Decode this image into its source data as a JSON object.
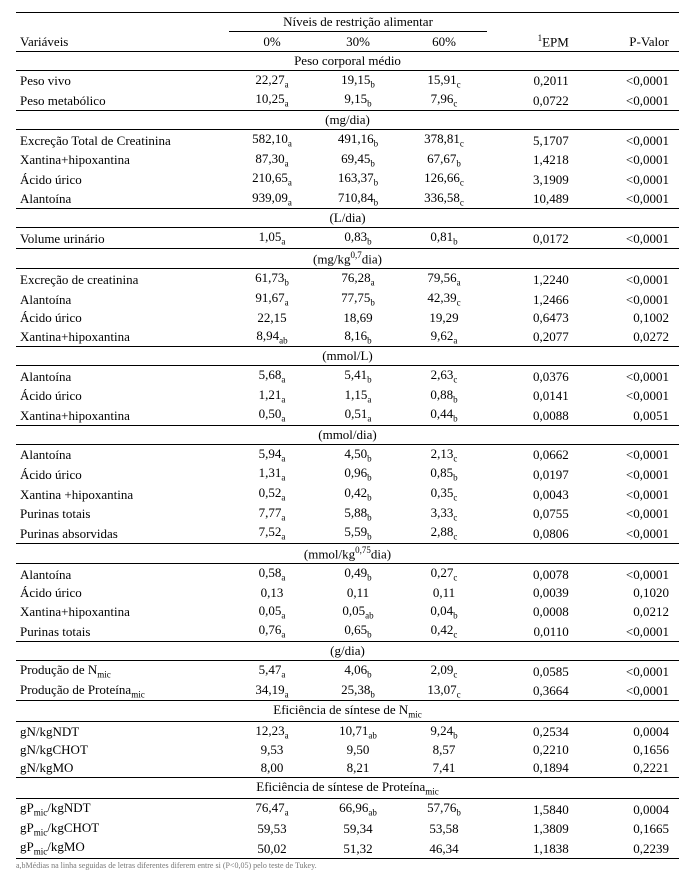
{
  "header": {
    "spanner": "Níveis de restrição alimentar",
    "variaveis": "Variáveis",
    "l0": "0%",
    "l30": "30%",
    "l60": "60%",
    "epm_sup": "1",
    "epm": "EPM",
    "pvalor": "P-Valor"
  },
  "sections": [
    {
      "title": "Peso corporal médio",
      "rows": [
        {
          "label": "Peso vivo",
          "v0": "22,27",
          "s0": "a",
          "v30": "19,15",
          "s30": "b",
          "v60": "15,91",
          "s60": "c",
          "epm": "0,2011",
          "p": "<0,0001"
        },
        {
          "label": "Peso metabólico",
          "v0": "10,25",
          "s0": "a",
          "v30": "9,15",
          "s30": "b",
          "v60": "7,96",
          "s60": "c",
          "epm": "0,0722",
          "p": "<0,0001"
        }
      ]
    },
    {
      "title": "(mg/dia)",
      "rows": [
        {
          "label": "Excreção Total de Creatinina",
          "v0": "582,10",
          "s0": "a",
          "v30": "491,16",
          "s30": "b",
          "v60": "378,81",
          "s60": "c",
          "epm": "5,1707",
          "p": "<0,0001"
        },
        {
          "label": "Xantina+hipoxantina",
          "v0": "87,30",
          "s0": "a",
          "v30": "69,45",
          "s30": "b",
          "v60": "67,67",
          "s60": "b",
          "epm": "1,4218",
          "p": "<0,0001"
        },
        {
          "label": "Ácido úrico",
          "v0": "210,65",
          "s0": "a",
          "v30": "163,37",
          "s30": "b",
          "v60": "126,66",
          "s60": "c",
          "epm": "3,1909",
          "p": "<0,0001"
        },
        {
          "label": "Alantoína",
          "v0": "939,09",
          "s0": "a",
          "v30": "710,84",
          "s30": "b",
          "v60": "336,58",
          "s60": "c",
          "epm": "10,489",
          "p": "<0,0001"
        }
      ]
    },
    {
      "title": "(L/dia)",
      "rows": [
        {
          "label": "Volume urinário",
          "v0": "1,05",
          "s0": "a",
          "v30": "0,83",
          "s30": "b",
          "v60": "0,81",
          "s60": "b",
          "epm": "0,0172",
          "p": "<0,0001"
        }
      ]
    },
    {
      "title": "(mg/kg<span class='exp'>0,7</span>dia)",
      "rows": [
        {
          "label": "Excreção de creatinina",
          "v0": "61,73",
          "s0": "b",
          "v30": "76,28",
          "s30": "a",
          "v60": "79,56",
          "s60": "a",
          "epm": "1,2240",
          "p": "<0,0001"
        },
        {
          "label": "Alantoína",
          "v0": "91,67",
          "s0": "a",
          "v30": "77,75",
          "s30": "b",
          "v60": "42,39",
          "s60": "c",
          "epm": "1,2466",
          "p": "<0,0001"
        },
        {
          "label": "Ácido úrico",
          "v0": "22,15",
          "s0": "",
          "v30": "18,69",
          "s30": "",
          "v60": "19,29",
          "s60": "",
          "epm": "0,6473",
          "p": "0,1002"
        },
        {
          "label": "Xantina+hipoxantina",
          "v0": "8,94",
          "s0": "ab",
          "v30": "8,16",
          "s30": "b",
          "v60": "9,62",
          "s60": "a",
          "epm": "0,2077",
          "p": "0,0272"
        }
      ]
    },
    {
      "title": "(mmol/L)",
      "rows": [
        {
          "label": "Alantoína",
          "v0": "5,68",
          "s0": "a",
          "v30": "5,41",
          "s30": "b",
          "v60": "2,63",
          "s60": "c",
          "epm": "0,0376",
          "p": "<0,0001"
        },
        {
          "label": "Ácido úrico",
          "v0": "1,21",
          "s0": "a",
          "v30": "1,15",
          "s30": "a",
          "v60": "0,88",
          "s60": "b",
          "epm": "0,0141",
          "p": "<0,0001"
        },
        {
          "label": "Xantina+hipoxantina",
          "v0": "0,50",
          "s0": "a",
          "v30": "0,51",
          "s30": "a",
          "v60": "0,44",
          "s60": "b",
          "epm": "0,0088",
          "p": "0,0051"
        }
      ]
    },
    {
      "title": "(mmol/dia)",
      "rows": [
        {
          "label": "Alantoína",
          "v0": "5,94",
          "s0": "a",
          "v30": "4,50",
          "s30": "b",
          "v60": "2,13",
          "s60": "c",
          "epm": "0,0662",
          "p": "<0,0001"
        },
        {
          "label": "Ácido úrico",
          "v0": "1,31",
          "s0": "a",
          "v30": "0,96",
          "s30": "b",
          "v60": "0,85",
          "s60": "b",
          "epm": "0,0197",
          "p": "<0,0001"
        },
        {
          "label": "Xantina +hipoxantina",
          "v0": "0,52",
          "s0": "a",
          "v30": "0,42",
          "s30": "b",
          "v60": "0,35",
          "s60": "c",
          "epm": "0,0043",
          "p": "<0,0001"
        },
        {
          "label": "Purinas totais",
          "v0": "7,77",
          "s0": "a",
          "v30": "5,88",
          "s30": "b",
          "v60": "3,33",
          "s60": "c",
          "epm": "0,0755",
          "p": "<0,0001"
        },
        {
          "label": "Purinas absorvidas",
          "v0": "7,52",
          "s0": "a",
          "v30": "5,59",
          "s30": "b",
          "v60": "2,88",
          "s60": "c",
          "epm": "0,0806",
          "p": "<0,0001"
        }
      ]
    },
    {
      "title": "(mmol/kg<span class='exp'>0,75</span>dia)",
      "rows": [
        {
          "label": "Alantoína",
          "v0": "0,58",
          "s0": "a",
          "v30": "0,49",
          "s30": "b",
          "v60": "0,27",
          "s60": "c",
          "epm": "0,0078",
          "p": "<0,0001"
        },
        {
          "label": "Ácido úrico",
          "v0": "0,13",
          "s0": "",
          "v30": "0,11",
          "s30": "",
          "v60": "0,11",
          "s60": "",
          "epm": "0,0039",
          "p": "0,1020"
        },
        {
          "label": "Xantina+hipoxantina",
          "v0": "0,05",
          "s0": "a",
          "v30": "0,05",
          "s30": "ab",
          "v60": "0,04",
          "s60": "b",
          "epm": "0,0008",
          "p": "0,0212"
        },
        {
          "label": "Purinas totais",
          "v0": "0,76",
          "s0": "a",
          "v30": "0,65",
          "s30": "b",
          "v60": "0,42",
          "s60": "c",
          "epm": "0,0110",
          "p": "<0,0001"
        }
      ]
    },
    {
      "title": "(g/dia)",
      "rows": [
        {
          "label": "Produção de N<sub>mic</sub>",
          "v0": "5,47",
          "s0": "a",
          "v30": "4,06",
          "s30": "b",
          "v60": "2,09",
          "s60": "c",
          "epm": "0,0585",
          "p": "<0,0001"
        },
        {
          "label": "Produção de Proteína<sub>mic</sub>",
          "v0": "34,19",
          "s0": "a",
          "v30": "25,38",
          "s30": "b",
          "v60": "13,07",
          "s60": "c",
          "epm": "0,3664",
          "p": "<0,0001"
        }
      ]
    },
    {
      "title": "Eficiência de síntese de N<sub>mic</sub>",
      "rows": [
        {
          "label": "gN/kgNDT",
          "v0": "12,23",
          "s0": "a",
          "v30": "10,71",
          "s30": "ab",
          "v60": "9,24",
          "s60": "b",
          "epm": "0,2534",
          "p": "0,0004"
        },
        {
          "label": "gN/kgCHOT",
          "v0": "9,53",
          "s0": "",
          "v30": "9,50",
          "s30": "",
          "v60": "8,57",
          "s60": "",
          "epm": "0,2210",
          "p": "0,1656"
        },
        {
          "label": "gN/kgMO",
          "v0": "8,00",
          "s0": "",
          "v30": "8,21",
          "s30": "",
          "v60": "7,41",
          "s60": "",
          "epm": "0,1894",
          "p": "0,2221"
        }
      ]
    },
    {
      "title": "Eficiência de síntese de Proteína<sub>mic</sub>",
      "rows": [
        {
          "label": "gP<sub>mic</sub>/kgNDT",
          "v0": "76,47",
          "s0": "a",
          "v30": "66,96",
          "s30": "ab",
          "v60": "57,76",
          "s60": "b",
          "epm": "1,5840",
          "p": "0,0004"
        },
        {
          "label": "gP<sub>mic</sub>/kgCHOT",
          "v0": "59,53",
          "s0": "",
          "v30": "59,34",
          "s30": "",
          "v60": "53,58",
          "s60": "",
          "epm": "1,3809",
          "p": "0,1665"
        },
        {
          "label": "gP<sub>mic</sub>/kgMO",
          "v0": "50,02",
          "s0": "",
          "v30": "51,32",
          "s30": "",
          "v60": "46,34",
          "s60": "",
          "epm": "1,1838",
          "p": "0,2239"
        }
      ]
    }
  ],
  "footnote": "a,bMédias na linha seguidas de letras diferentes diferem entre si (P<0,05) pelo teste de Tukey."
}
